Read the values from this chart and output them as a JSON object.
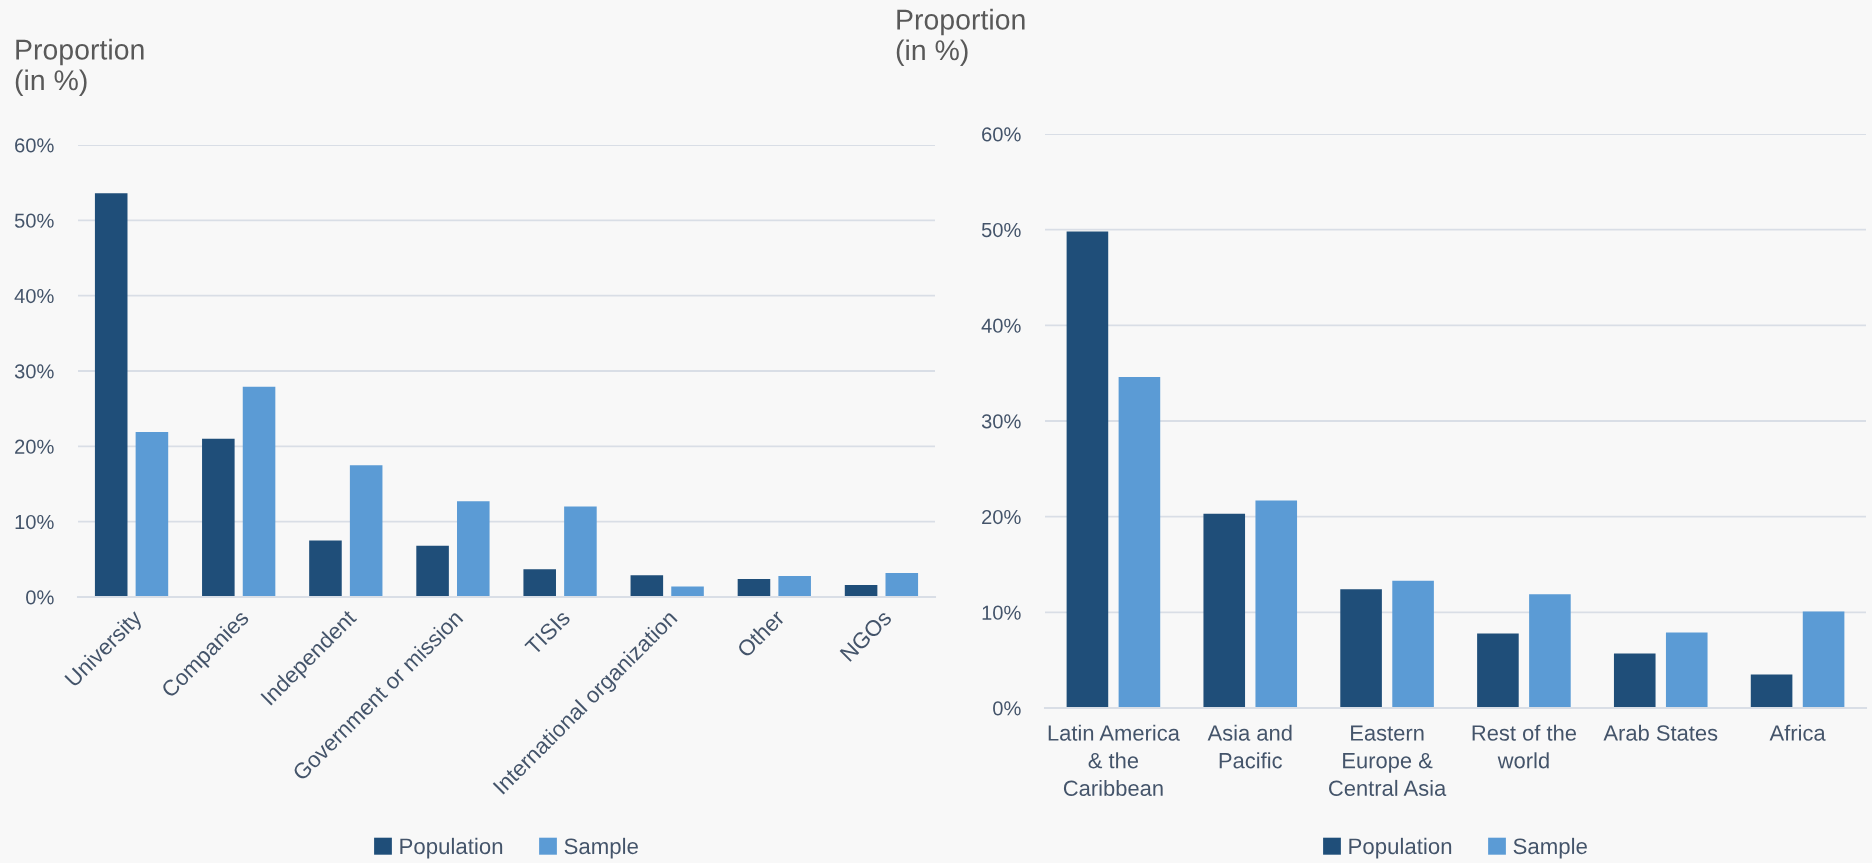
{
  "chart_data": [
    {
      "type": "bar",
      "ylabel": "Proportion\n(in %)",
      "categories": [
        "University",
        "Companies",
        "Independent",
        "Government or mission",
        "TISIs",
        "International organization",
        "Other",
        "NGOs"
      ],
      "series": [
        {
          "name": "Population",
          "color": "#1f4e79",
          "values": [
            53.6,
            21.0,
            7.5,
            6.8,
            3.7,
            2.9,
            2.4,
            1.6
          ]
        },
        {
          "name": "Sample",
          "color": "#5b9bd5",
          "values": [
            21.9,
            27.9,
            17.5,
            12.7,
            12.0,
            1.4,
            2.8,
            3.2
          ]
        }
      ],
      "ylim": [
        0,
        60
      ],
      "yticks": [
        {
          "value": 0,
          "label": "0%"
        },
        {
          "value": 10,
          "label": "10%"
        },
        {
          "value": 20,
          "label": "20%"
        },
        {
          "value": 30,
          "label": "30%"
        },
        {
          "value": 40,
          "label": "40%"
        },
        {
          "value": 50,
          "label": "50%"
        },
        {
          "value": 60,
          "label": "60%"
        }
      ],
      "grid": "y",
      "legend": "bottom"
    },
    {
      "type": "bar",
      "ylabel": "Proportion\n(in %)",
      "categories": [
        "Latin America & the Caribbean",
        "Asia and Pacific",
        "Eastern Europe & Central Asia",
        "Rest of the world",
        "Arab States",
        "Africa"
      ],
      "series": [
        {
          "name": "Population",
          "color": "#1f4e79",
          "values": [
            49.8,
            20.3,
            12.4,
            7.8,
            5.7,
            3.5
          ]
        },
        {
          "name": "Sample",
          "color": "#5b9bd5",
          "values": [
            34.6,
            21.7,
            13.3,
            11.9,
            7.9,
            10.1
          ]
        }
      ],
      "ylim": [
        0,
        60
      ],
      "yticks": [
        {
          "value": 0,
          "label": "0%"
        },
        {
          "value": 10,
          "label": "10%"
        },
        {
          "value": 20,
          "label": "20%"
        },
        {
          "value": 30,
          "label": "30%"
        },
        {
          "value": 40,
          "label": "40%"
        },
        {
          "value": 50,
          "label": "50%"
        },
        {
          "value": 60,
          "label": "60%"
        }
      ],
      "grid": "y",
      "legend": "bottom"
    }
  ]
}
